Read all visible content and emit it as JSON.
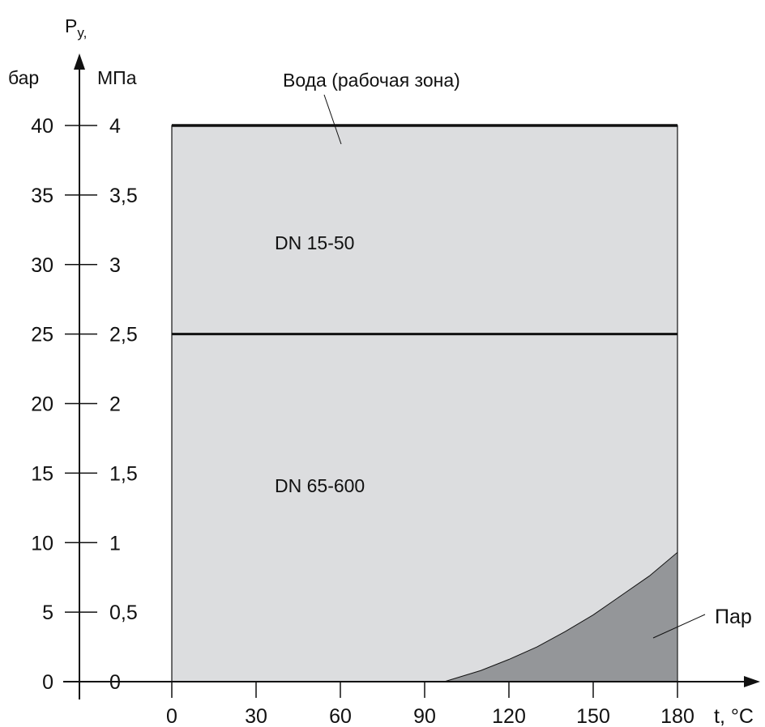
{
  "chart_data": {
    "type": "area",
    "y_axis": {
      "title": "P",
      "title_subscript": "y,",
      "left_unit": "бар",
      "right_unit": "МПа",
      "left_ticks": [
        "0",
        "5",
        "10",
        "15",
        "20",
        "25",
        "30",
        "35",
        "40"
      ],
      "right_ticks": [
        "0",
        "0,5",
        "1",
        "1,5",
        "2",
        "2,5",
        "3",
        "3,5",
        "4"
      ],
      "tick_values_bar": [
        0,
        5,
        10,
        15,
        20,
        25,
        30,
        35,
        40
      ]
    },
    "x_axis": {
      "label": "t, °C",
      "ticks": [
        "0",
        "30",
        "60",
        "90",
        "120",
        "150",
        "180"
      ],
      "tick_values": [
        0,
        30,
        60,
        90,
        120,
        150,
        180
      ]
    },
    "xlim": [
      0,
      180
    ],
    "ylim_bar": [
      0,
      40
    ],
    "regions": {
      "water_zone": {
        "x": [
          0,
          180
        ],
        "y_bar": [
          0,
          40
        ]
      },
      "dn_15_50_limit_bar": 40,
      "dn_65_600_limit_bar": 25,
      "steam_curve": {
        "x": [
          97,
          110,
          120,
          130,
          140,
          150,
          160,
          170,
          180
        ],
        "y_bar": [
          0,
          0.8,
          1.6,
          2.5,
          3.6,
          4.8,
          6.2,
          7.6,
          9.3
        ]
      }
    },
    "annotations": {
      "water": "Вода (рабочая зона)",
      "dn_small": "DN 15-50",
      "dn_large": "DN 65-600",
      "steam": "Пар"
    },
    "colors": {
      "water_fill": "#dcdddf",
      "steam_fill": "#949699",
      "line": "#111111"
    }
  }
}
